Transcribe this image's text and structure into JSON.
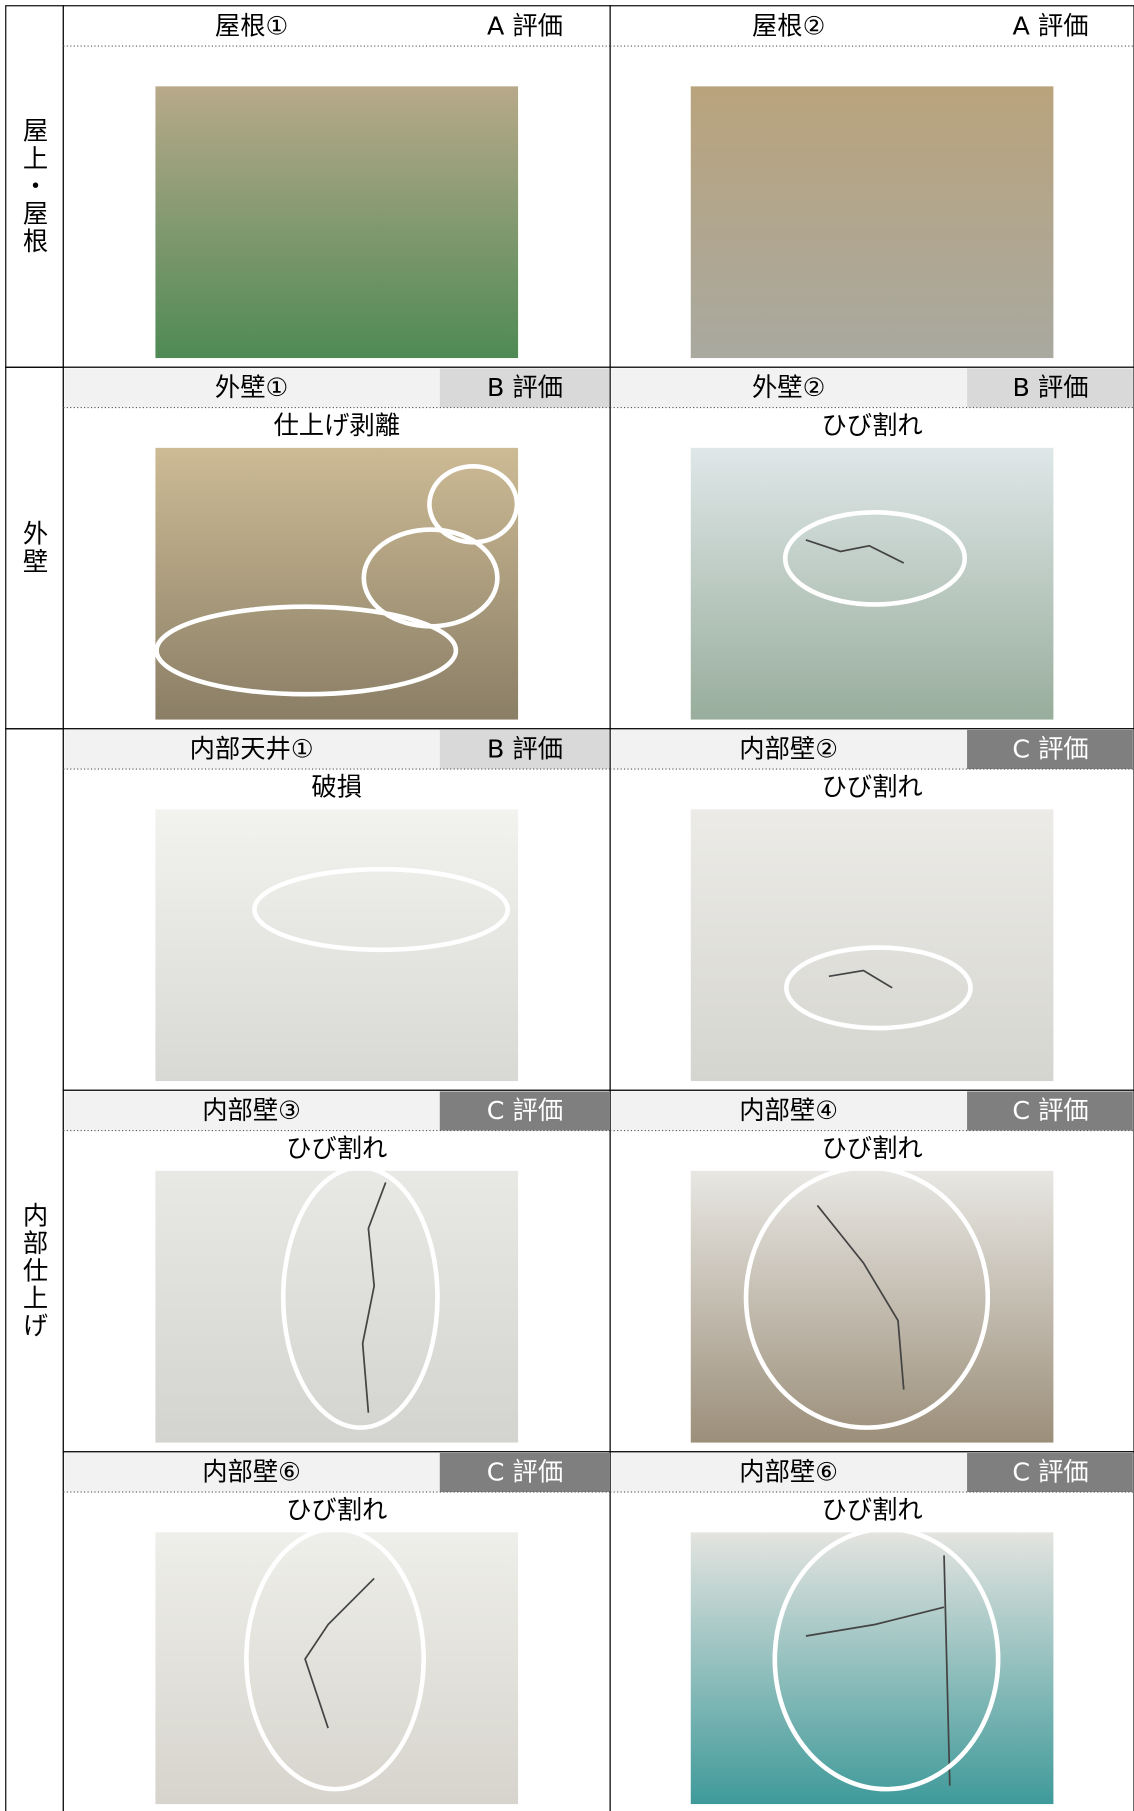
{
  "sections": [
    {
      "label": "屋上・屋根",
      "cells": [
        {
          "title": "屋根①",
          "grade": "A 評価"
        },
        {
          "title": "屋根②",
          "grade": "A 評価"
        }
      ]
    },
    {
      "label": "外壁",
      "cells": [
        {
          "title": "外壁①",
          "grade": "B 評価",
          "caption": "仕上げ剥離"
        },
        {
          "title": "外壁②",
          "grade": "B 評価",
          "caption": "ひび割れ"
        }
      ]
    },
    {
      "label": "内部仕上げ",
      "cells": [
        {
          "title": "内部天井①",
          "grade": "B 評価",
          "caption": "破損"
        },
        {
          "title": "内部壁②",
          "grade": "C 評価",
          "caption": "ひび割れ"
        },
        {
          "title": "内部壁③",
          "grade": "C 評価",
          "caption": "ひび割れ"
        },
        {
          "title": "内部壁④",
          "grade": "C 評価",
          "caption": "ひび割れ"
        },
        {
          "title": "内部壁⑥",
          "grade": "C 評価",
          "caption": "ひび割れ"
        },
        {
          "title": "内部壁⑥",
          "grade": "C 評価",
          "caption": "ひび割れ"
        }
      ]
    }
  ]
}
